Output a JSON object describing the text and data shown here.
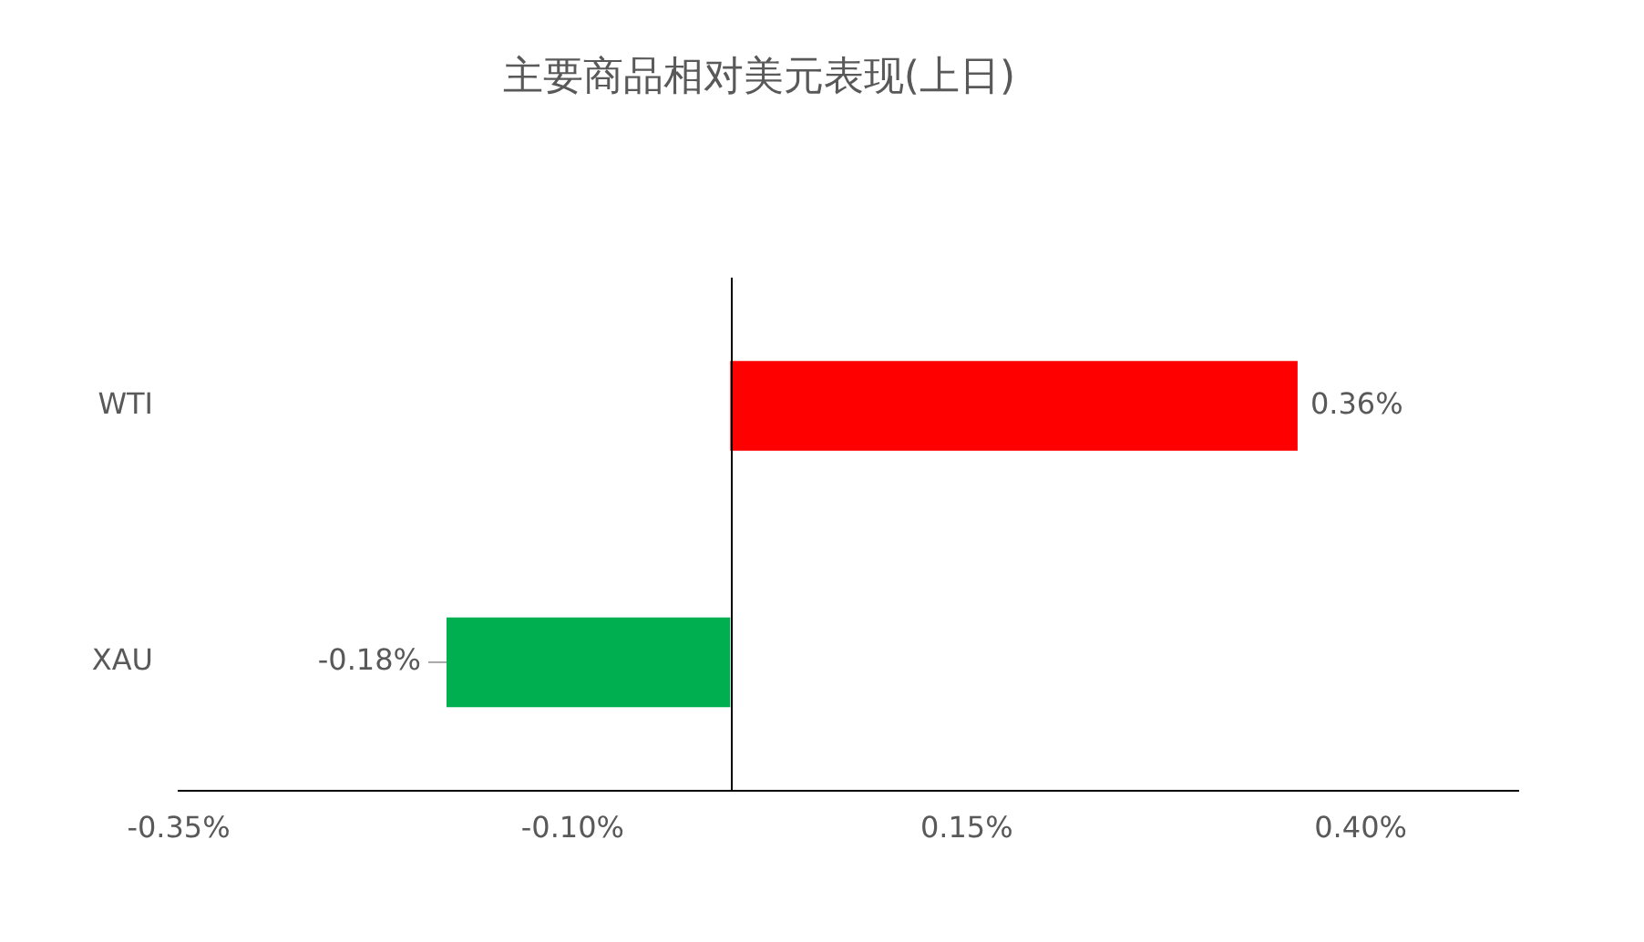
{
  "chart_data": {
    "type": "bar",
    "orientation": "horizontal",
    "title": "主要商品相对美元表现(上日)",
    "categories": [
      "WTI",
      "XAU"
    ],
    "values": [
      0.36,
      -0.18
    ],
    "colors": [
      "#ff0000",
      "#00b050"
    ],
    "value_labels": [
      "0.36%",
      "-0.18%"
    ],
    "xlim": [
      -0.35,
      0.5
    ],
    "xticks": [
      {
        "value": -0.35,
        "label": "-0.35%"
      },
      {
        "value": -0.1,
        "label": "-0.10%"
      },
      {
        "value": 0.15,
        "label": "0.15%"
      },
      {
        "value": 0.4,
        "label": "0.40%"
      }
    ],
    "grid": false,
    "legend": false
  }
}
